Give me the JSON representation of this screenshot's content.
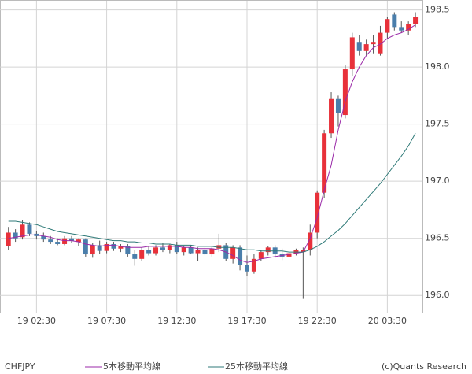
{
  "chart_data": {
    "type": "candlestick",
    "symbol": "CHFJPY",
    "copyright": "(c)Quants Research",
    "x": [
      0,
      1,
      2,
      3,
      4,
      5,
      6,
      7,
      8,
      9,
      10,
      11,
      12,
      13,
      14,
      15,
      16,
      17,
      18,
      19,
      20,
      21,
      22,
      23,
      24,
      25,
      26,
      27,
      28,
      29,
      30,
      31,
      32,
      33,
      34,
      35,
      36,
      37,
      38,
      39,
      40,
      41,
      42,
      43,
      44,
      45,
      46,
      47,
      48,
      49,
      50,
      51,
      52,
      53,
      54,
      55,
      56,
      57,
      58
    ],
    "open": [
      196.43,
      196.55,
      196.51,
      196.62,
      196.54,
      196.52,
      196.49,
      196.47,
      196.45,
      196.5,
      196.47,
      196.49,
      196.36,
      196.44,
      196.39,
      196.45,
      196.41,
      196.43,
      196.36,
      196.32,
      196.4,
      196.37,
      196.42,
      196.4,
      196.44,
      196.38,
      196.42,
      196.37,
      196.4,
      196.36,
      196.41,
      196.44,
      196.32,
      196.42,
      196.27,
      196.21,
      196.32,
      196.38,
      196.42,
      196.36,
      196.34,
      196.37,
      196.38,
      196.4,
      196.55,
      196.9,
      197.42,
      197.72,
      197.58,
      197.98,
      198.22,
      198.14,
      198.2,
      198.12,
      198.3,
      198.46,
      198.35,
      198.32,
      198.38
    ],
    "high": [
      196.6,
      196.58,
      196.66,
      196.64,
      196.56,
      196.55,
      196.52,
      196.5,
      196.52,
      196.52,
      196.5,
      196.5,
      196.46,
      196.48,
      196.47,
      196.47,
      196.45,
      196.45,
      196.4,
      196.42,
      196.43,
      196.44,
      196.46,
      196.45,
      196.47,
      196.43,
      196.44,
      196.42,
      196.42,
      196.43,
      196.54,
      196.46,
      196.44,
      196.44,
      196.35,
      196.36,
      196.4,
      196.43,
      196.44,
      196.41,
      196.39,
      196.41,
      196.42,
      196.62,
      196.92,
      197.45,
      197.78,
      197.75,
      198.02,
      198.3,
      198.28,
      198.24,
      198.28,
      198.36,
      198.44,
      198.48,
      198.4,
      198.4,
      198.48
    ],
    "low": [
      196.4,
      196.47,
      196.49,
      196.52,
      196.49,
      196.47,
      196.45,
      196.44,
      196.44,
      196.46,
      196.43,
      196.34,
      196.33,
      196.36,
      196.37,
      196.39,
      196.38,
      196.34,
      196.26,
      196.3,
      196.35,
      196.35,
      196.38,
      196.37,
      196.36,
      196.35,
      196.36,
      196.3,
      196.35,
      196.34,
      196.38,
      196.3,
      196.28,
      196.22,
      196.17,
      196.19,
      196.3,
      196.35,
      196.33,
      196.31,
      196.32,
      196.35,
      195.97,
      196.35,
      196.5,
      196.85,
      197.38,
      197.48,
      197.55,
      197.92,
      198.1,
      198.1,
      198.12,
      198.1,
      198.25,
      198.32,
      198.3,
      198.28,
      198.35
    ],
    "close": [
      196.55,
      196.5,
      196.62,
      196.54,
      196.52,
      196.49,
      196.47,
      196.45,
      196.5,
      196.48,
      196.49,
      196.36,
      196.44,
      196.39,
      196.45,
      196.41,
      196.43,
      196.36,
      196.32,
      196.4,
      196.37,
      196.42,
      196.4,
      196.44,
      196.38,
      196.42,
      196.37,
      196.4,
      196.36,
      196.41,
      196.44,
      196.32,
      196.42,
      196.27,
      196.21,
      196.32,
      196.38,
      196.42,
      196.36,
      196.34,
      196.37,
      196.4,
      196.4,
      196.55,
      196.9,
      197.42,
      197.72,
      197.6,
      197.98,
      198.26,
      198.14,
      198.2,
      198.22,
      198.3,
      198.42,
      198.35,
      198.32,
      198.38,
      198.44
    ],
    "up_color": "#e8313a",
    "down_color": "#4a7eab",
    "wick_color": "#555555",
    "series": [
      {
        "name": "5本移動平均線",
        "color": "#9b2aa8",
        "values": [
          196.5,
          196.51,
          196.52,
          196.53,
          196.53,
          196.52,
          196.51,
          196.49,
          196.48,
          196.48,
          196.47,
          196.45,
          196.44,
          196.43,
          196.44,
          196.44,
          196.43,
          196.42,
          196.42,
          196.42,
          196.43,
          196.43,
          196.43,
          196.43,
          196.43,
          196.42,
          196.42,
          196.41,
          196.41,
          196.41,
          196.4,
          196.38,
          196.35,
          196.31,
          196.29,
          196.3,
          196.32,
          196.33,
          196.34,
          196.35,
          196.36,
          196.37,
          196.38,
          196.5,
          196.68,
          196.92,
          197.14,
          197.45,
          197.7,
          197.87,
          198.0,
          198.1,
          198.17,
          198.2,
          198.25,
          198.28,
          198.3,
          198.33,
          198.37
        ]
      },
      {
        "name": "25本移動平均線",
        "color": "#2f7a78",
        "values": [
          196.65,
          196.65,
          196.64,
          196.63,
          196.62,
          196.6,
          196.58,
          196.56,
          196.55,
          196.54,
          196.53,
          196.52,
          196.51,
          196.5,
          196.49,
          196.48,
          196.48,
          196.47,
          196.47,
          196.46,
          196.46,
          196.45,
          196.45,
          196.45,
          196.44,
          196.44,
          196.44,
          196.43,
          196.43,
          196.43,
          196.42,
          196.42,
          196.42,
          196.41,
          196.4,
          196.4,
          196.39,
          196.39,
          196.39,
          196.39,
          196.38,
          196.38,
          196.38,
          196.4,
          196.43,
          196.47,
          196.52,
          196.57,
          196.63,
          196.7,
          196.77,
          196.84,
          196.91,
          196.98,
          197.06,
          197.14,
          197.22,
          197.31,
          197.42
        ]
      }
    ],
    "xlim": [
      -1.2,
      59.0
    ],
    "xticks": [
      {
        "value": 4,
        "label": "19 02:30"
      },
      {
        "value": 14,
        "label": "19 07:30"
      },
      {
        "value": 24,
        "label": "19 12:30"
      },
      {
        "value": 34,
        "label": "19 17:30"
      },
      {
        "value": 44,
        "label": "19 22:30"
      },
      {
        "value": 54,
        "label": "20 03:30"
      }
    ],
    "ylim": [
      195.85,
      198.58
    ],
    "yticks": [
      {
        "value": 196,
        "label": "196.0"
      },
      196.5,
      {
        "value": 197,
        "label": "197.0"
      },
      197.5,
      {
        "value": 198,
        "label": "198.0"
      },
      198.5
    ],
    "grid": true
  }
}
